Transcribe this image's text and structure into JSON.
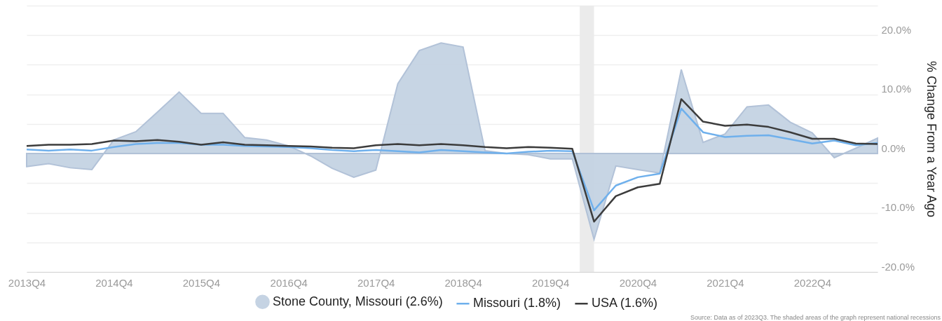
{
  "chart_data": {
    "type": "line",
    "ylabel": "% Change From a Year Ago",
    "x": [
      "2013-10",
      "2014-01",
      "2014-04",
      "2014-07",
      "2014-10",
      "2015-01",
      "2015-04",
      "2015-07",
      "2015-10",
      "2016-01",
      "2016-04",
      "2016-07",
      "2016-10",
      "2017-01",
      "2017-04",
      "2017-07",
      "2017-10",
      "2018-01",
      "2018-04",
      "2018-07",
      "2018-10",
      "2019-01",
      "2019-04",
      "2019-07",
      "2019-10",
      "2020-01",
      "2020-04",
      "2020-07",
      "2020-10",
      "2021-01",
      "2021-04",
      "2021-07",
      "2021-10",
      "2022-01",
      "2022-04",
      "2022-07",
      "2022-10",
      "2023-01",
      "2023-04",
      "2023-07"
    ],
    "series": [
      {
        "name": "Stone County, Missouri (2.6%)",
        "type": "area",
        "color": "#c5d3e3",
        "values": [
          -2.2,
          -1.7,
          -2.4,
          -2.7,
          2.3,
          3.7,
          7.0,
          10.4,
          6.8,
          6.8,
          2.7,
          2.3,
          1.3,
          -0.4,
          -2.5,
          -4.0,
          -2.8,
          11.8,
          17.4,
          18.7,
          18.0,
          0.5,
          0.0,
          -0.2,
          -0.9,
          -0.9,
          -14.5,
          -2.1,
          -2.7,
          -3.3,
          14.2,
          1.9,
          3.3,
          7.9,
          8.2,
          5.3,
          3.5,
          -0.7,
          0.9,
          2.6
        ]
      },
      {
        "name": "Missouri (1.8%)",
        "type": "line",
        "color": "#6fb0ec",
        "values": [
          0.7,
          0.5,
          0.7,
          0.5,
          1.1,
          1.6,
          1.8,
          1.8,
          1.5,
          1.5,
          1.3,
          1.2,
          1.1,
          0.9,
          0.6,
          0.4,
          0.6,
          0.4,
          0.2,
          0.6,
          0.4,
          0.2,
          0.0,
          0.3,
          0.5,
          0.4,
          -9.6,
          -5.4,
          -4.0,
          -3.4,
          7.6,
          3.6,
          2.8,
          3.0,
          3.1,
          2.4,
          1.7,
          2.2,
          1.4,
          1.8
        ]
      },
      {
        "name": "USA (1.6%)",
        "type": "line",
        "color": "#3c3c3c",
        "values": [
          1.3,
          1.5,
          1.5,
          1.6,
          2.2,
          2.1,
          2.3,
          2.0,
          1.5,
          1.9,
          1.5,
          1.4,
          1.3,
          1.2,
          1.0,
          0.9,
          1.4,
          1.6,
          1.4,
          1.6,
          1.4,
          1.1,
          0.9,
          1.1,
          1.0,
          0.8,
          -11.5,
          -7.2,
          -5.7,
          -5.1,
          9.2,
          5.4,
          4.7,
          4.9,
          4.5,
          3.6,
          2.5,
          2.5,
          1.7,
          1.6
        ]
      }
    ],
    "xlim": [
      "2013-10",
      "2023-07"
    ],
    "xticks": [
      {
        "value": "2013-10",
        "label": "2013Q4"
      },
      {
        "value": "2014-10",
        "label": "2014Q4"
      },
      {
        "value": "2015-10",
        "label": "2015Q4"
      },
      {
        "value": "2016-10",
        "label": "2016Q4"
      },
      {
        "value": "2017-10",
        "label": "2017Q4"
      },
      {
        "value": "2018-10",
        "label": "2018Q4"
      },
      {
        "value": "2019-10",
        "label": "2019Q4"
      },
      {
        "value": "2020-10",
        "label": "2020Q4"
      },
      {
        "value": "2021-10",
        "label": "2021Q4"
      },
      {
        "value": "2022-10",
        "label": "2022Q4"
      }
    ],
    "ylim": [
      -20,
      25
    ],
    "yticks": [
      {
        "value": -20,
        "label": "-20.0%"
      },
      {
        "value": -15,
        "label": null
      },
      {
        "value": -10,
        "label": "-10.0%"
      },
      {
        "value": -5,
        "label": null
      },
      {
        "value": 0,
        "label": "0.0%"
      },
      {
        "value": 5,
        "label": null
      },
      {
        "value": 10,
        "label": "10.0%"
      },
      {
        "value": 15,
        "label": null
      },
      {
        "value": 20,
        "label": "20.0%"
      },
      {
        "value": 25,
        "label": null
      }
    ],
    "bands": [
      {
        "axis": "x",
        "from": "2020-02",
        "to": "2020-04",
        "color": "#ebebeb"
      }
    ],
    "grid": "y",
    "legend": "bottom",
    "marker": "none",
    "annotations": [
      "Source: Data as of 2023Q3. The shaded areas of the graph represent national recessions"
    ]
  }
}
